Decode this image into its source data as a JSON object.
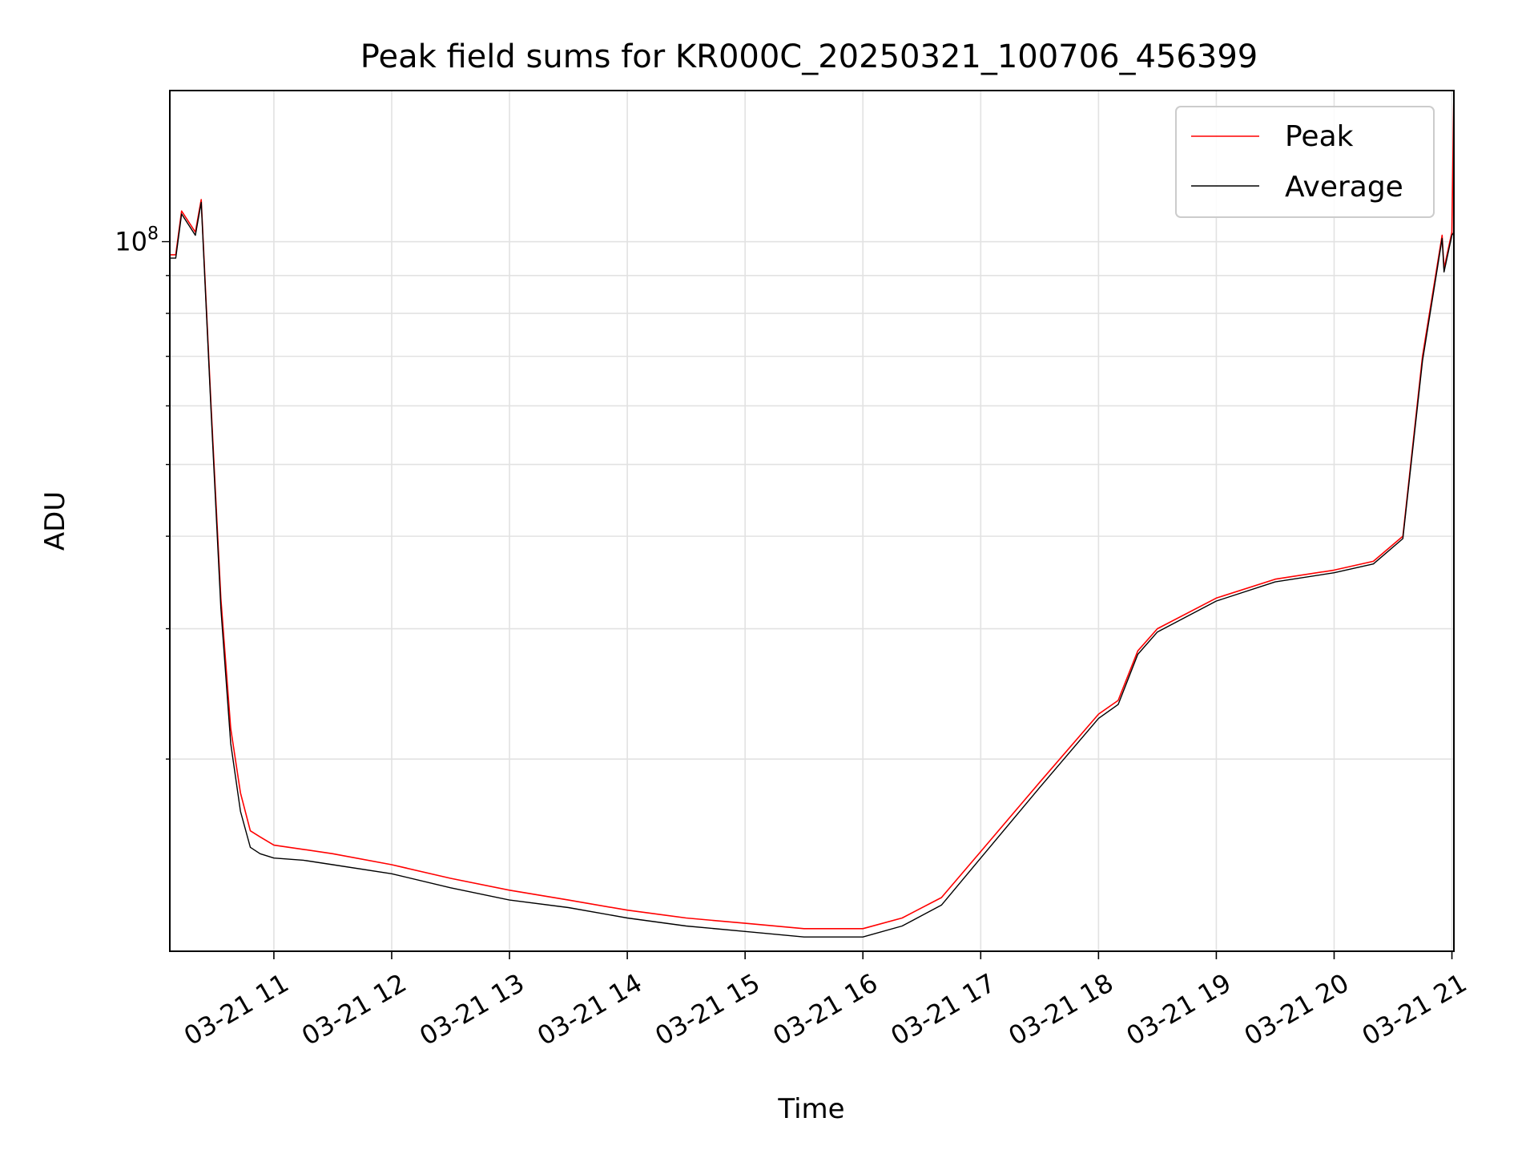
{
  "chart_data": {
    "type": "line",
    "title": "Peak field sums for KR000C_20250321_100706_456399",
    "xlabel": "Time",
    "ylabel": "ADU",
    "yscale": "log",
    "xlim": [
      "2025-03-21 10:07",
      "2025-03-21 21:01"
    ],
    "ylim": [
      11000000,
      160000000
    ],
    "grid": true,
    "legend_position": "top-right",
    "x_ticks": [
      "03-21 11",
      "03-21 12",
      "03-21 13",
      "03-21 14",
      "03-21 15",
      "03-21 16",
      "03-21 17",
      "03-21 18",
      "03-21 19",
      "03-21 20",
      "03-21 21"
    ],
    "y_tick_labels": [
      {
        "value": 100000000,
        "base": "10",
        "exp": "8"
      }
    ],
    "series": [
      {
        "name": "Peak",
        "color": "#ff0000",
        "x": [
          "2025-03-21 10:07",
          "2025-03-21 10:10",
          "2025-03-21 10:13",
          "2025-03-21 10:20",
          "2025-03-21 10:23",
          "2025-03-21 10:28",
          "2025-03-21 10:33",
          "2025-03-21 10:38",
          "2025-03-21 10:43",
          "2025-03-21 10:48",
          "2025-03-21 10:53",
          "2025-03-21 11:00",
          "2025-03-21 11:15",
          "2025-03-21 11:30",
          "2025-03-21 12:00",
          "2025-03-21 12:30",
          "2025-03-21 13:00",
          "2025-03-21 13:30",
          "2025-03-21 14:00",
          "2025-03-21 14:30",
          "2025-03-21 15:00",
          "2025-03-21 15:30",
          "2025-03-21 16:00",
          "2025-03-21 16:20",
          "2025-03-21 16:40",
          "2025-03-21 17:00",
          "2025-03-21 17:30",
          "2025-03-21 18:00",
          "2025-03-21 18:10",
          "2025-03-21 18:20",
          "2025-03-21 18:30",
          "2025-03-21 19:00",
          "2025-03-21 19:30",
          "2025-03-21 20:00",
          "2025-03-21 20:20",
          "2025-03-21 20:35",
          "2025-03-21 20:45",
          "2025-03-21 20:55",
          "2025-03-21 20:56",
          "2025-03-21 21:00",
          "2025-03-21 21:01"
        ],
        "y": [
          96000000,
          96000000,
          110000000,
          103000000,
          114000000,
          60000000,
          33000000,
          22000000,
          18000000,
          16000000,
          15700000,
          15300000,
          15100000,
          14900000,
          14400000,
          13800000,
          13300000,
          12900000,
          12500000,
          12200000,
          12000000,
          11800000,
          11800000,
          12200000,
          13000000,
          15000000,
          18600000,
          23000000,
          24000000,
          28000000,
          30000000,
          33000000,
          35000000,
          36000000,
          37000000,
          40000000,
          70000000,
          102000000,
          92000000,
          103000000,
          160000000
        ]
      },
      {
        "name": "Average",
        "color": "#000000",
        "x": [
          "2025-03-21 10:07",
          "2025-03-21 10:10",
          "2025-03-21 10:13",
          "2025-03-21 10:20",
          "2025-03-21 10:23",
          "2025-03-21 10:28",
          "2025-03-21 10:33",
          "2025-03-21 10:38",
          "2025-03-21 10:43",
          "2025-03-21 10:48",
          "2025-03-21 10:53",
          "2025-03-21 11:00",
          "2025-03-21 11:15",
          "2025-03-21 11:30",
          "2025-03-21 12:00",
          "2025-03-21 12:30",
          "2025-03-21 13:00",
          "2025-03-21 13:30",
          "2025-03-21 14:00",
          "2025-03-21 14:30",
          "2025-03-21 15:00",
          "2025-03-21 15:30",
          "2025-03-21 16:00",
          "2025-03-21 16:20",
          "2025-03-21 16:40",
          "2025-03-21 17:00",
          "2025-03-21 17:30",
          "2025-03-21 18:00",
          "2025-03-21 18:10",
          "2025-03-21 18:20",
          "2025-03-21 18:30",
          "2025-03-21 19:00",
          "2025-03-21 19:30",
          "2025-03-21 20:00",
          "2025-03-21 20:20",
          "2025-03-21 20:35",
          "2025-03-21 20:45",
          "2025-03-21 20:55",
          "2025-03-21 20:56",
          "2025-03-21 21:00",
          "2025-03-21 21:01"
        ],
        "y": [
          95000000,
          95000000,
          109000000,
          102000000,
          113000000,
          59000000,
          32000000,
          21000000,
          17000000,
          15200000,
          14900000,
          14700000,
          14600000,
          14400000,
          14000000,
          13400000,
          12900000,
          12600000,
          12200000,
          11900000,
          11700000,
          11500000,
          11500000,
          11900000,
          12700000,
          14700000,
          18300000,
          22700000,
          23700000,
          27700000,
          29700000,
          32700000,
          34700000,
          35700000,
          36700000,
          39700000,
          69000000,
          101000000,
          91000000,
          102000000,
          103000000
        ]
      }
    ]
  }
}
